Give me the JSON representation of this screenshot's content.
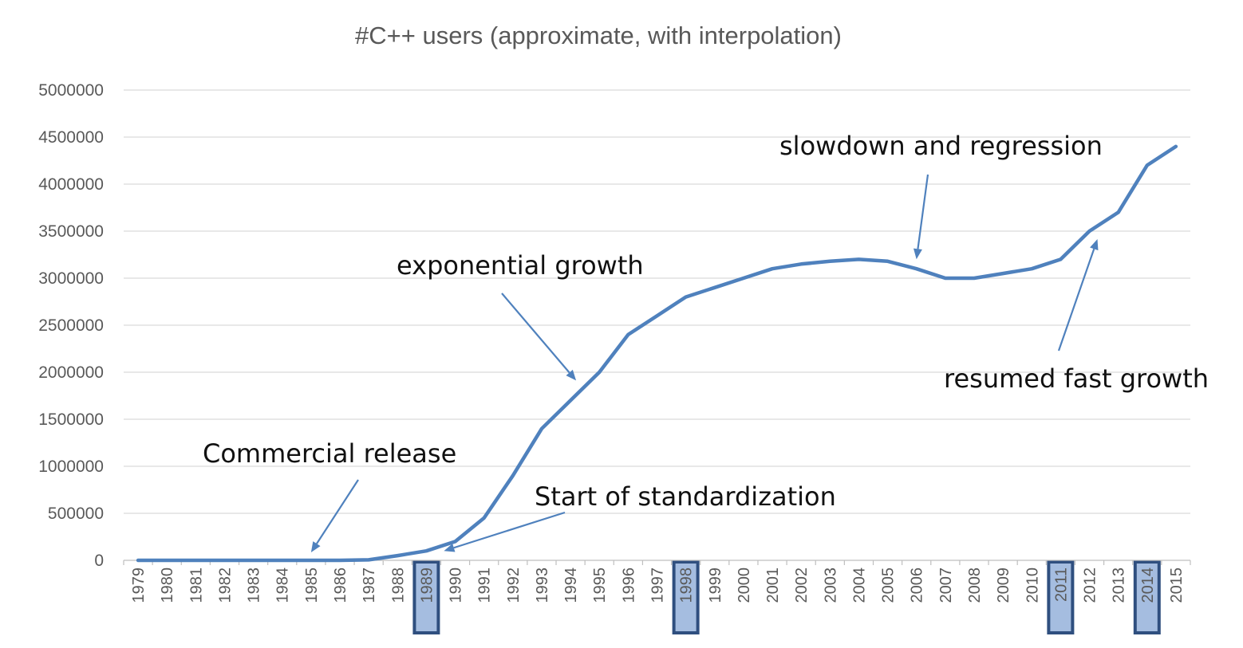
{
  "chart_data": {
    "type": "line",
    "title": "#C++ users (approximate, with interpolation)",
    "xlabel": "",
    "ylabel": "",
    "ylim": [
      0,
      5000000
    ],
    "y_ticks": [
      "0",
      "500000",
      "1000000",
      "1500000",
      "2000000",
      "2500000",
      "3000000",
      "3500000",
      "4000000",
      "4500000",
      "5000000"
    ],
    "grid": true,
    "categories": [
      "1979",
      "1980",
      "1981",
      "1982",
      "1983",
      "1984",
      "1985",
      "1986",
      "1987",
      "1988",
      "1989",
      "1990",
      "1991",
      "1992",
      "1993",
      "1994",
      "1995",
      "1996",
      "1997",
      "1998",
      "1999",
      "2000",
      "2001",
      "2002",
      "2003",
      "2004",
      "2005",
      "2006",
      "2007",
      "2008",
      "2009",
      "2010",
      "2011",
      "2012",
      "2013",
      "2014",
      "2015"
    ],
    "series": [
      {
        "values": [
          0,
          0,
          0,
          0,
          0,
          0,
          0,
          0,
          5000,
          50000,
          100000,
          200000,
          450000,
          900000,
          1400000,
          1700000,
          2000000,
          2400000,
          2600000,
          2800000,
          2900000,
          3000000,
          3100000,
          3150000,
          3180000,
          3200000,
          3180000,
          3100000,
          3000000,
          3000000,
          3050000,
          3100000,
          3200000,
          3500000,
          3700000,
          4200000,
          4400000
        ],
        "color": "#4f81bd"
      }
    ],
    "highlighted_years": [
      "1989",
      "1998",
      "2011",
      "2014"
    ],
    "annotations": [
      {
        "text": "Commercial release",
        "target_year": "1985"
      },
      {
        "text": "Start of standardization",
        "target_year": "1989"
      },
      {
        "text": "exponential growth",
        "target_year": "1994"
      },
      {
        "text": "slowdown and regression",
        "target_year": "2006"
      },
      {
        "text": "resumed fast growth",
        "target_year": "2012"
      }
    ]
  }
}
